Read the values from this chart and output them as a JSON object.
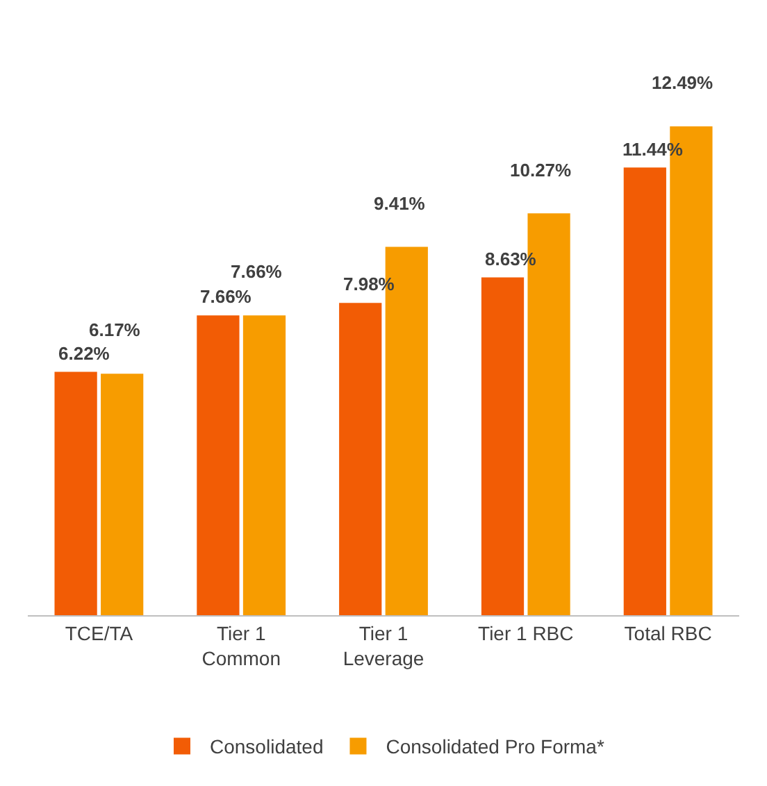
{
  "chart_data": {
    "type": "bar",
    "categories": [
      "TCE/TA",
      "Tier 1 Common",
      "Tier 1 Leverage",
      "Tier 1 RBC",
      "Total RBC"
    ],
    "series": [
      {
        "name": "Consolidated",
        "color": "#f25c05",
        "values": [
          6.22,
          7.66,
          7.98,
          8.63,
          11.44
        ],
        "value_labels": [
          "6.22%",
          "7.66%",
          "7.98%",
          "8.63%",
          "11.44%"
        ]
      },
      {
        "name": "Consolidated Pro Forma*",
        "color": "#f79c00",
        "values": [
          6.17,
          7.66,
          9.41,
          10.27,
          12.49
        ],
        "value_labels": [
          "6.17%",
          "7.66%",
          "9.41%",
          "10.27%",
          "12.49%"
        ]
      }
    ],
    "legend": "bottom"
  }
}
